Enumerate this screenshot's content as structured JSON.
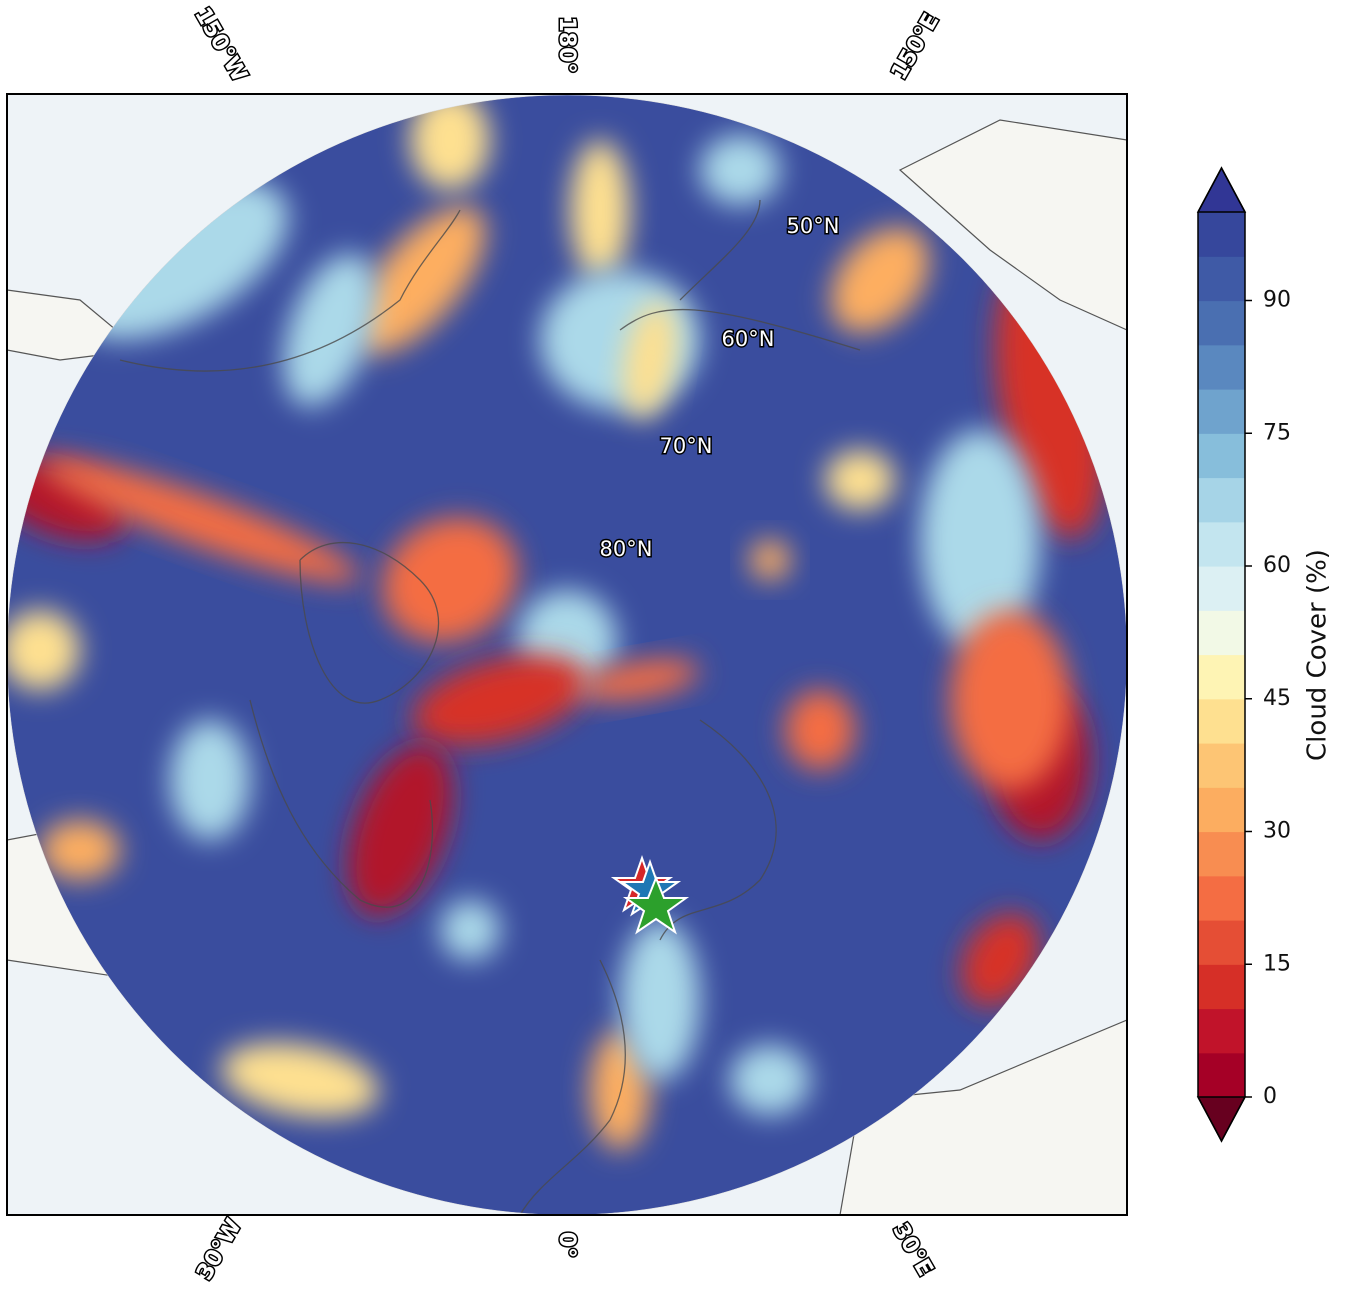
{
  "map": {
    "longitude_labels": [
      "150°W",
      "180°",
      "150°E",
      "30°W",
      "0°",
      "30°E"
    ],
    "latitude_labels": [
      "50°N",
      "60°N",
      "70°N",
      "80°N"
    ],
    "colorbar": {
      "label": "Cloud Cover (%)",
      "range": [
        0,
        100
      ],
      "ticks": [
        0,
        15,
        30,
        45,
        60,
        75,
        90
      ]
    }
  }
}
